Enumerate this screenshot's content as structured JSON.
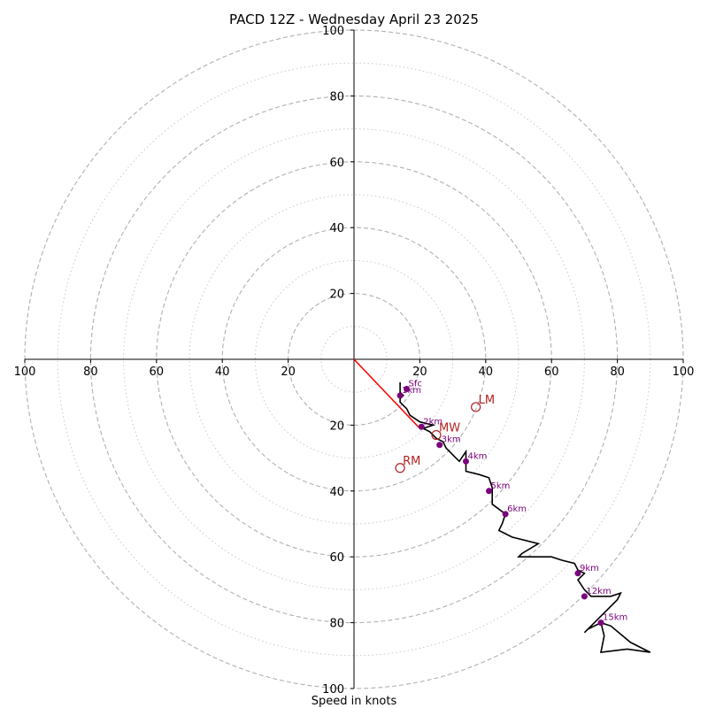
{
  "chart_data": {
    "type": "hodograph",
    "title": "PACD 12Z - Wednesday April 23 2025",
    "xlabel": "Speed in knots",
    "range": [
      -100,
      100
    ],
    "ring_major": [
      20,
      40,
      60,
      80,
      100
    ],
    "ring_minor": [
      10,
      30,
      50,
      70,
      90
    ],
    "tick_values": [
      20,
      40,
      60,
      80,
      100
    ],
    "tick_labels": [
      "20",
      "40",
      "60",
      "80",
      "100"
    ],
    "colors": {
      "trace": "#000000",
      "height_marker": "#7b007b",
      "storm_motion": "#b22222",
      "shear_vector": "#ff0000",
      "grid": "#b0b0b0"
    },
    "trace": [
      [
        14,
        -7
      ],
      [
        14,
        -10
      ],
      [
        15,
        -11
      ],
      [
        14,
        -12
      ],
      [
        14,
        -13
      ],
      [
        16,
        -15
      ],
      [
        17,
        -17
      ],
      [
        20,
        -19
      ],
      [
        24,
        -20
      ],
      [
        21,
        -21
      ],
      [
        23,
        -22
      ],
      [
        25,
        -24
      ],
      [
        27,
        -25
      ],
      [
        28,
        -27
      ],
      [
        30,
        -29
      ],
      [
        32,
        -31
      ],
      [
        34,
        -28
      ],
      [
        34,
        -34
      ],
      [
        38,
        -35
      ],
      [
        41,
        -36
      ],
      [
        42,
        -39
      ],
      [
        42,
        -41
      ],
      [
        42,
        -44
      ],
      [
        46,
        -47
      ],
      [
        45,
        -50
      ],
      [
        44,
        -52
      ],
      [
        48,
        -54
      ],
      [
        56,
        -56
      ],
      [
        51,
        -59
      ],
      [
        50,
        -60
      ],
      [
        55,
        -60
      ],
      [
        60,
        -60
      ],
      [
        63,
        -61
      ],
      [
        67,
        -62
      ],
      [
        68,
        -64
      ],
      [
        70,
        -65
      ],
      [
        68,
        -67
      ],
      [
        70,
        -70
      ],
      [
        72,
        -72
      ],
      [
        78,
        -72
      ],
      [
        81,
        -71
      ],
      [
        80,
        -73
      ],
      [
        75,
        -78
      ],
      [
        70,
        -83
      ],
      [
        71,
        -82
      ],
      [
        75,
        -80
      ],
      [
        78,
        -81
      ],
      [
        84,
        -86
      ],
      [
        90,
        -89
      ],
      [
        83,
        -88
      ],
      [
        75,
        -89
      ],
      [
        76,
        -84
      ],
      [
        75,
        -80
      ]
    ],
    "height_markers": [
      {
        "label": "Sfc",
        "u": 16,
        "v": -9
      },
      {
        "label": "1km",
        "u": 14,
        "v": -11
      },
      {
        "label": "2km",
        "u": 20.5,
        "v": -20.5
      },
      {
        "label": "3km",
        "u": 26,
        "v": -26
      },
      {
        "label": "4km",
        "u": 34,
        "v": -31
      },
      {
        "label": "5km",
        "u": 41,
        "v": -40
      },
      {
        "label": "6km",
        "u": 46,
        "v": -47
      },
      {
        "label": "9km",
        "u": 68,
        "v": -65
      },
      {
        "label": "12km",
        "u": 70,
        "v": -72
      },
      {
        "label": "15km",
        "u": 75,
        "v": -80
      }
    ],
    "storm_motion": [
      {
        "label": "LM",
        "u": 37,
        "v": -14.5
      },
      {
        "label": "MW",
        "u": 25,
        "v": -23
      },
      {
        "label": "RM",
        "u": 14,
        "v": -33
      }
    ],
    "shear_vector": {
      "from": [
        0,
        0
      ],
      "to": [
        20,
        -21
      ]
    }
  }
}
